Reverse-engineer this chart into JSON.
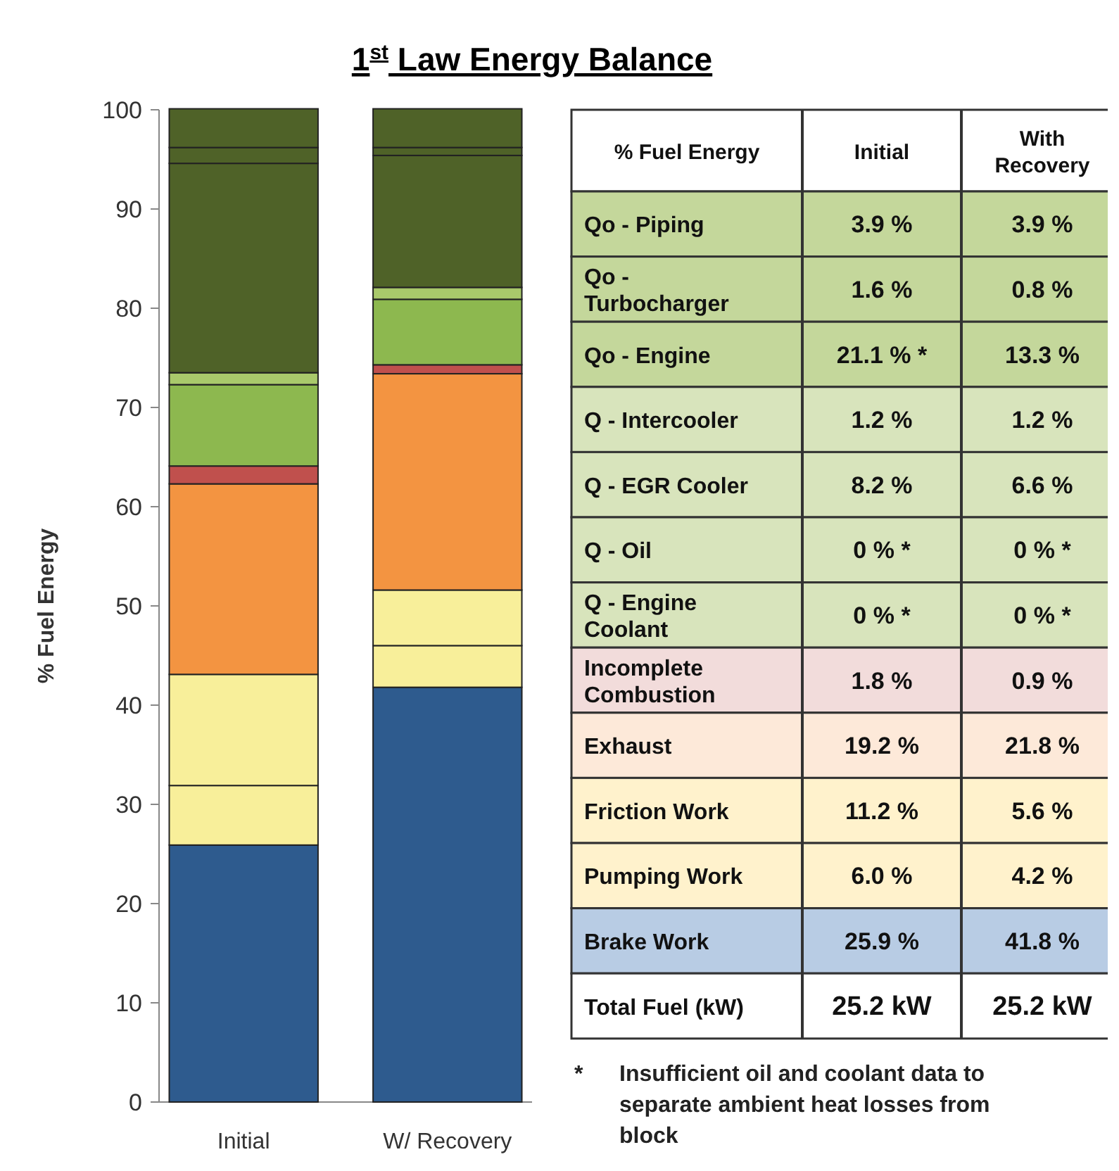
{
  "chart_data": [
    {
      "type": "bar",
      "stacked": true,
      "title": "1$^{st}$ Law Energy Balance",
      "ylabel": "% Fuel Energy",
      "categories": [
        "Initial",
        "W/ Recovery"
      ],
      "ylim": [
        0,
        100
      ],
      "yticks": [
        0,
        10,
        20,
        30,
        40,
        50,
        60,
        70,
        80,
        90,
        100
      ],
      "series": [
        {
          "color": "#2e5b8e",
          "values": [
            25.9,
            41.8
          ]
        },
        {
          "color": "#f8ef9a",
          "values": [
            6.0,
            4.2
          ]
        },
        {
          "color": "#f8ef9a",
          "values": [
            11.2,
            5.6
          ]
        },
        {
          "color": "#f39441",
          "values": [
            19.2,
            21.8
          ]
        },
        {
          "color": "#c0504d",
          "values": [
            1.8,
            0.9
          ]
        },
        {
          "color": "#9bbb59",
          "values": [
            0,
            0
          ]
        },
        {
          "color": "#9bbb59",
          "values": [
            0,
            0
          ]
        },
        {
          "color": "#8db84f",
          "values": [
            8.2,
            6.6
          ]
        },
        {
          "color": "#a9c96b",
          "values": [
            1.2,
            1.2
          ]
        },
        {
          "color": "#4f6228",
          "values": [
            21.1,
            13.3
          ]
        },
        {
          "color": "#4f6228",
          "values": [
            1.6,
            0.8
          ]
        },
        {
          "color": "#4f6228",
          "values": [
            3.9,
            3.9
          ]
        }
      ]
    },
    {
      "type": "other",
      "colors": [
        "#ffffff",
        "#c4d79b",
        "#c4d79b",
        "#c4d79b",
        "#d8e4bc",
        "#d8e4bc",
        "#d8e4bc",
        "#d8e4bc",
        "#f2dcdb",
        "#fde9d9",
        "#fff2cc",
        "#fff2cc",
        "#b8cce4",
        "#ffffff"
      ],
      "annotations": [
        "% Fuel Energy",
        "Initial",
        "With Recovery",
        "Qo - Piping",
        "3.9 %",
        "3.9 %",
        "Qo - Turbocharger",
        "1.6 %",
        "0.8 %",
        "Qo - Engine",
        "21.1 % *",
        "13.3 %",
        "Q - Intercooler",
        "1.2 %",
        "1.2 %",
        "Q - EGR Cooler",
        "8.2 %",
        "6.6 %",
        "Q - Oil",
        "0 % *",
        "0 % *",
        "Q - Engine Coolant",
        "0 % *",
        "0 % *",
        "Incomplete Combustion",
        "1.8 %",
        "0.9 %",
        "Exhaust",
        "19.2 %",
        "21.8 %",
        "Friction Work",
        "11.2 %",
        "5.6 %",
        "Pumping Work",
        "6.0 %",
        "4.2 %",
        "Brake Work",
        "25.9 %",
        "41.8 %",
        "Total Fuel (kW)",
        "25.2 kW",
        "25.2 kW",
        "* Insufficient oil and coolant data to separate ambient heat losses from block"
      ]
    }
  ]
}
